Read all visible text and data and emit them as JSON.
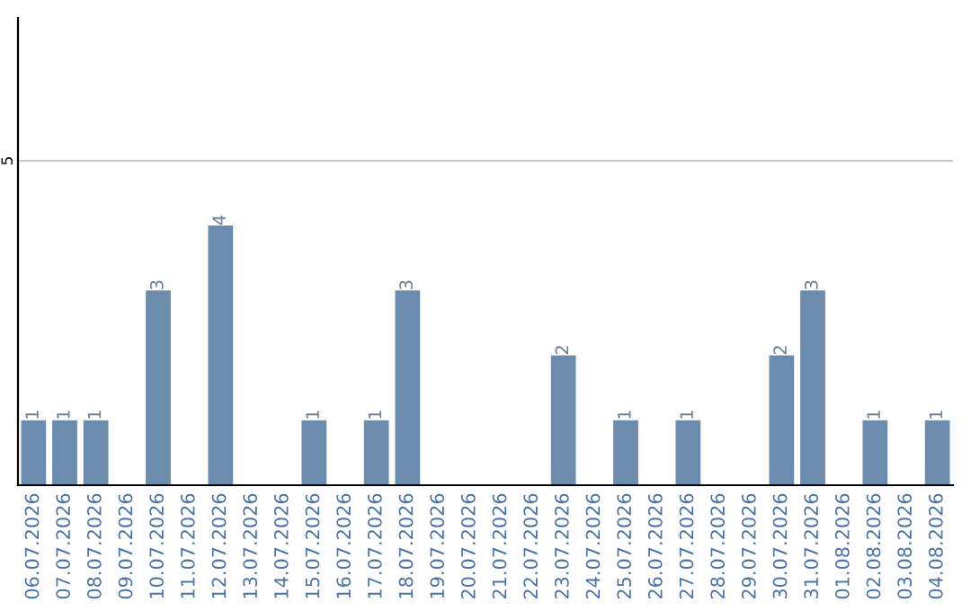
{
  "chart_data": {
    "type": "bar",
    "categories": [
      "06.07.2026",
      "07.07.2026",
      "08.07.2026",
      "09.07.2026",
      "10.07.2026",
      "11.07.2026",
      "12.07.2026",
      "13.07.2026",
      "14.07.2026",
      "15.07.2026",
      "16.07.2026",
      "17.07.2026",
      "18.07.2026",
      "19.07.2026",
      "20.07.2026",
      "21.07.2026",
      "22.07.2026",
      "23.07.2026",
      "24.07.2026",
      "25.07.2026",
      "26.07.2026",
      "27.07.2026",
      "28.07.2026",
      "29.07.2026",
      "30.07.2026",
      "31.07.2026",
      "01.08.2026",
      "02.08.2026",
      "03.08.2026",
      "04.08.2026"
    ],
    "values": [
      1,
      1,
      1,
      null,
      3,
      null,
      4,
      null,
      null,
      1,
      null,
      1,
      3,
      null,
      null,
      null,
      null,
      2,
      null,
      1,
      null,
      1,
      null,
      null,
      2,
      3,
      null,
      1,
      null,
      1
    ],
    "color": "#6b8cac",
    "ylim": [
      0,
      7.2
    ],
    "yticks": [
      5
    ],
    "grid": "y",
    "data_labels": true
  }
}
